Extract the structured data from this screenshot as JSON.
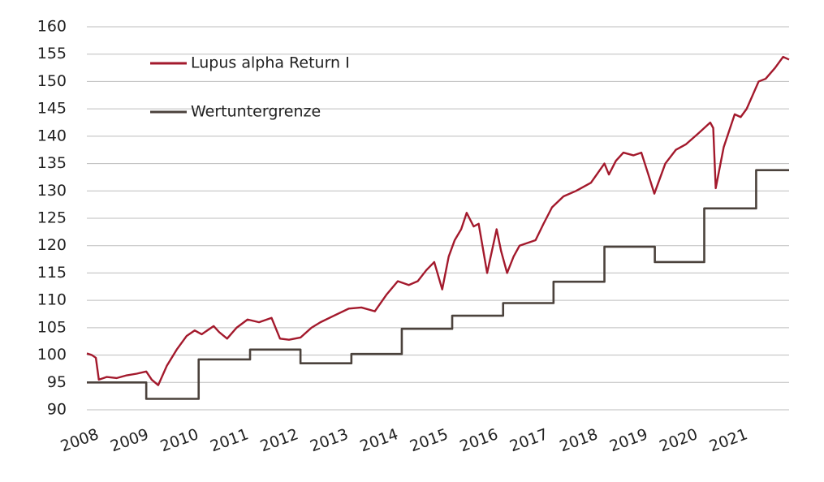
{
  "chart_data": {
    "type": "line",
    "xlim": [
      2008,
      2022.07
    ],
    "xticks": [
      2008,
      2009,
      2010,
      2011,
      2012,
      2013,
      2014,
      2015,
      2016,
      2017,
      2018,
      2019,
      2020,
      2021
    ],
    "ylim": [
      90,
      160
    ],
    "yticks": [
      90,
      95,
      100,
      105,
      110,
      115,
      120,
      125,
      130,
      135,
      140,
      145,
      150,
      155,
      160
    ],
    "grid": true,
    "legend": "top-left",
    "series": [
      {
        "name": "Lupus alpha Return I",
        "color": "#a3192c",
        "x": [
          2008.0,
          2008.1,
          2008.18,
          2008.24,
          2008.4,
          2008.6,
          2008.8,
          2009.0,
          2009.19,
          2009.3,
          2009.43,
          2009.6,
          2009.8,
          2010.0,
          2010.16,
          2010.3,
          2010.54,
          2010.65,
          2010.81,
          2011.0,
          2011.22,
          2011.45,
          2011.7,
          2011.87,
          2012.05,
          2012.28,
          2012.5,
          2012.68,
          2012.95,
          2013.25,
          2013.5,
          2013.77,
          2014.0,
          2014.23,
          2014.45,
          2014.63,
          2014.8,
          2014.96,
          2015.12,
          2015.25,
          2015.37,
          2015.5,
          2015.61,
          2015.75,
          2015.85,
          2016.02,
          2016.21,
          2016.3,
          2016.42,
          2016.55,
          2016.67,
          2016.99,
          2017.15,
          2017.32,
          2017.55,
          2017.8,
          2018.1,
          2018.37,
          2018.46,
          2018.6,
          2018.75,
          2018.95,
          2019.11,
          2019.25,
          2019.37,
          2019.59,
          2019.8,
          2020.0,
          2020.25,
          2020.49,
          2020.55,
          2020.6,
          2020.76,
          2020.98,
          2021.1,
          2021.22,
          2021.46,
          2021.6,
          2021.79,
          2021.95,
          2022.07
        ],
        "values": [
          100.3,
          100,
          99.5,
          95.5,
          96,
          95.8,
          96.3,
          96.6,
          97,
          95.5,
          94.5,
          98,
          101,
          103.5,
          104.5,
          103.8,
          105.3,
          104.2,
          103,
          105,
          106.5,
          106,
          106.8,
          103,
          102.8,
          103.2,
          105,
          106,
          107.2,
          108.5,
          108.7,
          108,
          111,
          113.5,
          112.8,
          113.5,
          115.5,
          117,
          112,
          118,
          121,
          123,
          126,
          123.5,
          124,
          115,
          123,
          119,
          115,
          118,
          120,
          121,
          124,
          127,
          129,
          130,
          131.5,
          135,
          133,
          135.5,
          137,
          136.5,
          137,
          133,
          129.5,
          135,
          137.5,
          138.5,
          140.5,
          142.5,
          141.5,
          130.5,
          138,
          144,
          143.5,
          145,
          150,
          150.5,
          152.5,
          154.5,
          154
        ]
      },
      {
        "name": "Wertuntergrenze",
        "color": "#4b423c",
        "x": [
          2008.0,
          2009.19,
          2009.19,
          2010.24,
          2010.24,
          2011.27,
          2011.27,
          2012.28,
          2012.28,
          2013.3,
          2013.3,
          2014.31,
          2014.31,
          2015.32,
          2015.32,
          2016.34,
          2016.34,
          2017.35,
          2017.35,
          2018.37,
          2018.37,
          2019.38,
          2019.38,
          2020.37,
          2020.37,
          2021.41,
          2021.41,
          2022.07
        ],
        "values": [
          95,
          95,
          92,
          92,
          99.2,
          99.2,
          101,
          101,
          98.5,
          98.5,
          100.2,
          100.2,
          104.8,
          104.8,
          107.2,
          107.2,
          109.5,
          109.5,
          113.4,
          113.4,
          119.8,
          119.8,
          117,
          117,
          126.8,
          126.8,
          133.8,
          133.8
        ]
      }
    ]
  }
}
